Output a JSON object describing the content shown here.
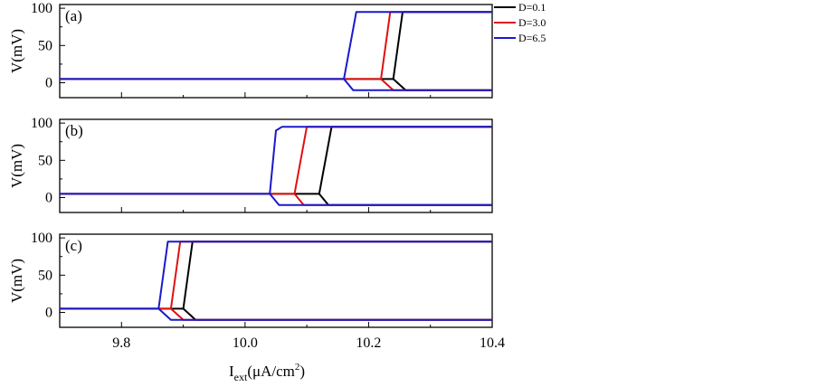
{
  "figure": {
    "ylabel": "V(mV)",
    "xlabel_main": "I",
    "xlabel_sub": "ext",
    "xlabel_units": "(μA/cm",
    "xlabel_sup": "2",
    "xlabel_close": ")"
  },
  "legend": [
    {
      "label": "D=0.1",
      "color": "#000000"
    },
    {
      "label": "D=3.0",
      "color": "#e01010"
    },
    {
      "label": "D=6.5",
      "color": "#1a1acc"
    }
  ],
  "chart_data": [
    {
      "type": "line",
      "panel_label": "(a)",
      "xlim": [
        9.7,
        10.4
      ],
      "ylim": [
        -20,
        105
      ],
      "yticks": [
        0,
        50,
        100
      ],
      "series": [
        {
          "name": "D=0.1",
          "color": "#000000",
          "upper": [
            [
              9.7,
              5
            ],
            [
              10.24,
              5
            ],
            [
              10.255,
              95
            ],
            [
              10.4,
              95
            ]
          ],
          "lower": [
            [
              10.24,
              5
            ],
            [
              10.26,
              -10
            ],
            [
              10.4,
              -10
            ]
          ]
        },
        {
          "name": "D=3.0",
          "color": "#e01010",
          "upper": [
            [
              9.7,
              5
            ],
            [
              10.22,
              5
            ],
            [
              10.235,
              95
            ],
            [
              10.4,
              95
            ]
          ],
          "lower": [
            [
              10.22,
              5
            ],
            [
              10.24,
              -10
            ],
            [
              10.4,
              -10
            ]
          ]
        },
        {
          "name": "D=6.5",
          "color": "#1a1acc",
          "upper": [
            [
              9.7,
              5
            ],
            [
              10.16,
              5
            ],
            [
              10.18,
              95
            ],
            [
              10.4,
              95
            ]
          ],
          "lower": [
            [
              10.16,
              5
            ],
            [
              10.175,
              -10
            ],
            [
              10.4,
              -10
            ]
          ]
        }
      ]
    },
    {
      "type": "line",
      "panel_label": "(b)",
      "xlim": [
        9.7,
        10.4
      ],
      "ylim": [
        -20,
        105
      ],
      "yticks": [
        0,
        50,
        100
      ],
      "series": [
        {
          "name": "D=0.1",
          "color": "#000000",
          "upper": [
            [
              9.7,
              5
            ],
            [
              10.12,
              5
            ],
            [
              10.14,
              95
            ],
            [
              10.4,
              95
            ]
          ],
          "lower": [
            [
              10.12,
              5
            ],
            [
              10.135,
              -10
            ],
            [
              10.4,
              -10
            ]
          ]
        },
        {
          "name": "D=3.0",
          "color": "#e01010",
          "upper": [
            [
              9.7,
              5
            ],
            [
              10.08,
              5
            ],
            [
              10.1,
              95
            ],
            [
              10.4,
              95
            ]
          ],
          "lower": [
            [
              10.08,
              5
            ],
            [
              10.095,
              -10
            ],
            [
              10.4,
              -10
            ]
          ]
        },
        {
          "name": "D=6.5",
          "color": "#1a1acc",
          "upper": [
            [
              9.7,
              5
            ],
            [
              10.04,
              5
            ],
            [
              10.05,
              90
            ],
            [
              10.06,
              95
            ],
            [
              10.4,
              95
            ]
          ],
          "lower": [
            [
              10.04,
              5
            ],
            [
              10.055,
              -10
            ],
            [
              10.4,
              -10
            ]
          ]
        }
      ]
    },
    {
      "type": "line",
      "panel_label": "(c)",
      "xlim": [
        9.7,
        10.4
      ],
      "ylim": [
        -20,
        105
      ],
      "yticks": [
        0,
        50,
        100
      ],
      "xticks": [
        9.8,
        10.0,
        10.2,
        10.4
      ],
      "xticklabels": [
        "9.8",
        "10.0",
        "10.2",
        "10.4"
      ],
      "series": [
        {
          "name": "D=0.1",
          "color": "#000000",
          "upper": [
            [
              9.7,
              5
            ],
            [
              9.9,
              5
            ],
            [
              9.915,
              95
            ],
            [
              10.4,
              95
            ]
          ],
          "lower": [
            [
              9.9,
              5
            ],
            [
              9.92,
              -10
            ],
            [
              10.4,
              -10
            ]
          ]
        },
        {
          "name": "D=3.0",
          "color": "#e01010",
          "upper": [
            [
              9.7,
              5
            ],
            [
              9.88,
              5
            ],
            [
              9.895,
              95
            ],
            [
              10.4,
              95
            ]
          ],
          "lower": [
            [
              9.88,
              5
            ],
            [
              9.9,
              -10
            ],
            [
              10.4,
              -10
            ]
          ]
        },
        {
          "name": "D=6.5",
          "color": "#1a1acc",
          "upper": [
            [
              9.7,
              5
            ],
            [
              9.86,
              5
            ],
            [
              9.875,
              95
            ],
            [
              10.4,
              95
            ]
          ],
          "lower": [
            [
              9.86,
              5
            ],
            [
              9.88,
              -10
            ],
            [
              10.4,
              -10
            ]
          ]
        }
      ]
    }
  ]
}
